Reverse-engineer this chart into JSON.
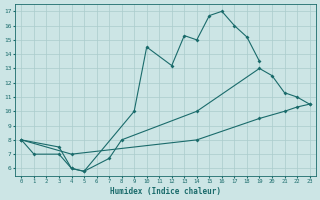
{
  "xlabel": "Humidex (Indice chaleur)",
  "xlim": [
    -0.5,
    23.5
  ],
  "ylim": [
    5.5,
    17.5
  ],
  "xticks": [
    0,
    1,
    2,
    3,
    4,
    5,
    6,
    7,
    8,
    9,
    10,
    11,
    12,
    13,
    14,
    15,
    16,
    17,
    18,
    19,
    20,
    21,
    22,
    23
  ],
  "yticks": [
    6,
    7,
    8,
    9,
    10,
    11,
    12,
    13,
    14,
    15,
    16,
    17
  ],
  "bg_color": "#cce5e5",
  "grid_color": "#aacccc",
  "line_color": "#1a6b6b",
  "line1_x": [
    0,
    1,
    3,
    4,
    5,
    9,
    10,
    12,
    13,
    14,
    15,
    16,
    17,
    18,
    19
  ],
  "line1_y": [
    8,
    7,
    7,
    6,
    5.8,
    10.0,
    14.5,
    13.2,
    15.3,
    15.0,
    16.7,
    17.0,
    16.0,
    15.2,
    13.5
  ],
  "line2_x": [
    0,
    3,
    4,
    5,
    7,
    8,
    14,
    19,
    20,
    21,
    22,
    23
  ],
  "line2_y": [
    8,
    7.5,
    6.0,
    5.8,
    6.7,
    8.0,
    10.0,
    13.0,
    12.5,
    11.3,
    11.0,
    10.5
  ],
  "line3_x": [
    0,
    4,
    14,
    19,
    21,
    22,
    23
  ],
  "line3_y": [
    8,
    7.0,
    8.0,
    9.5,
    10.0,
    10.3,
    10.5
  ],
  "figsize": [
    3.2,
    2.0
  ],
  "dpi": 100
}
